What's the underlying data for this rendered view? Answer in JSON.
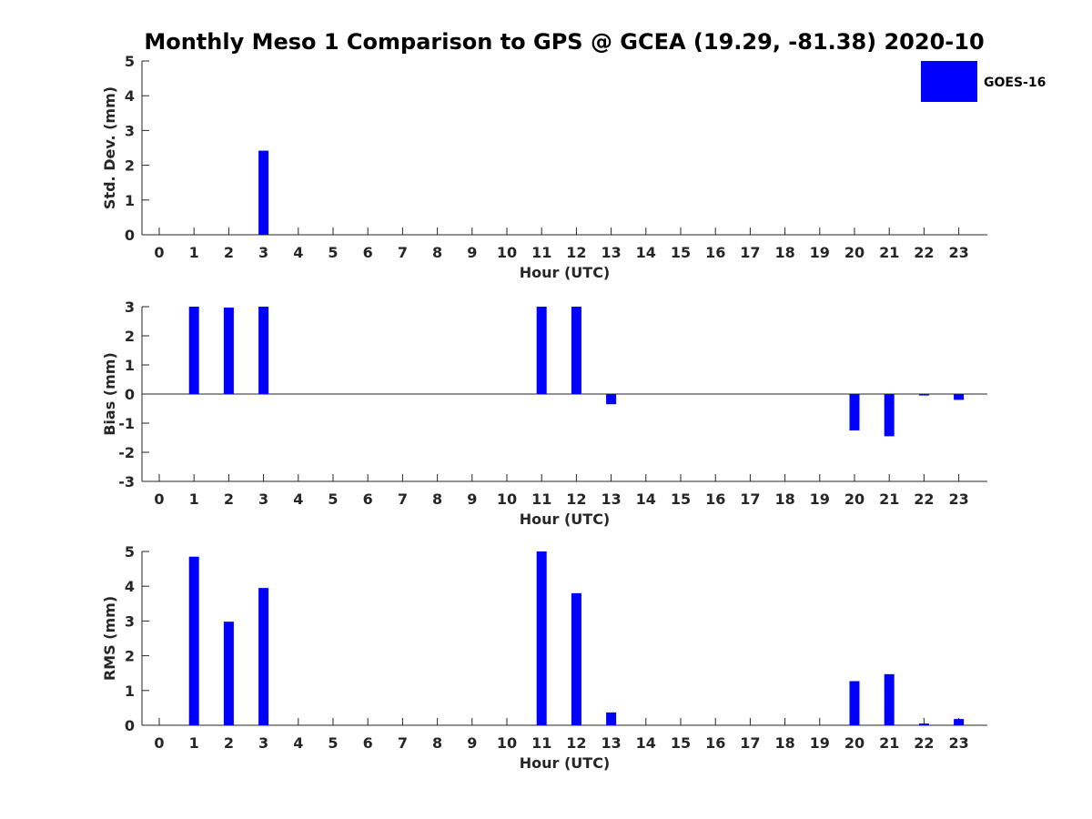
{
  "chart_data": {
    "title": "Monthly Meso 1 Comparison to GPS @ GCEA (19.29, -81.38) 2020-10",
    "legend": {
      "label": "GOES-16",
      "color": "#0000ff",
      "placement": "top-right"
    },
    "panels": [
      {
        "type": "bar",
        "ylabel": "Std. Dev. (mm)",
        "xlabel": "Hour (UTC)",
        "ylim": [
          0,
          5
        ],
        "yticks": [
          0,
          1,
          2,
          3,
          4,
          5
        ],
        "x": [
          0,
          1,
          2,
          3,
          4,
          5,
          6,
          7,
          8,
          9,
          10,
          11,
          12,
          13,
          14,
          15,
          16,
          17,
          18,
          19,
          20,
          21,
          22,
          23
        ],
        "values": [
          null,
          null,
          null,
          2.42,
          null,
          null,
          null,
          null,
          null,
          null,
          null,
          null,
          null,
          null,
          null,
          null,
          null,
          null,
          null,
          null,
          null,
          null,
          null,
          null
        ]
      },
      {
        "type": "bar",
        "ylabel": "Bias (mm)",
        "xlabel": "Hour (UTC)",
        "ylim": [
          -3,
          3
        ],
        "yticks": [
          -3,
          -2,
          -1,
          0,
          1,
          2,
          3
        ],
        "x": [
          0,
          1,
          2,
          3,
          4,
          5,
          6,
          7,
          8,
          9,
          10,
          11,
          12,
          13,
          14,
          15,
          16,
          17,
          18,
          19,
          20,
          21,
          22,
          23
        ],
        "values": [
          null,
          3.0,
          2.97,
          3.0,
          null,
          null,
          null,
          null,
          null,
          null,
          null,
          3.0,
          3.0,
          -0.35,
          null,
          null,
          null,
          null,
          null,
          null,
          -1.25,
          -1.45,
          -0.05,
          -0.2
        ]
      },
      {
        "type": "bar",
        "ylabel": "RMS (mm)",
        "xlabel": "Hour (UTC)",
        "ylim": [
          0,
          5
        ],
        "yticks": [
          0,
          1,
          2,
          3,
          4,
          5
        ],
        "x": [
          0,
          1,
          2,
          3,
          4,
          5,
          6,
          7,
          8,
          9,
          10,
          11,
          12,
          13,
          14,
          15,
          16,
          17,
          18,
          19,
          20,
          21,
          22,
          23
        ],
        "values": [
          null,
          4.85,
          2.98,
          3.95,
          null,
          null,
          null,
          null,
          null,
          null,
          null,
          5.0,
          3.8,
          0.37,
          null,
          null,
          null,
          null,
          null,
          null,
          1.27,
          1.47,
          0.05,
          0.18
        ]
      }
    ]
  }
}
